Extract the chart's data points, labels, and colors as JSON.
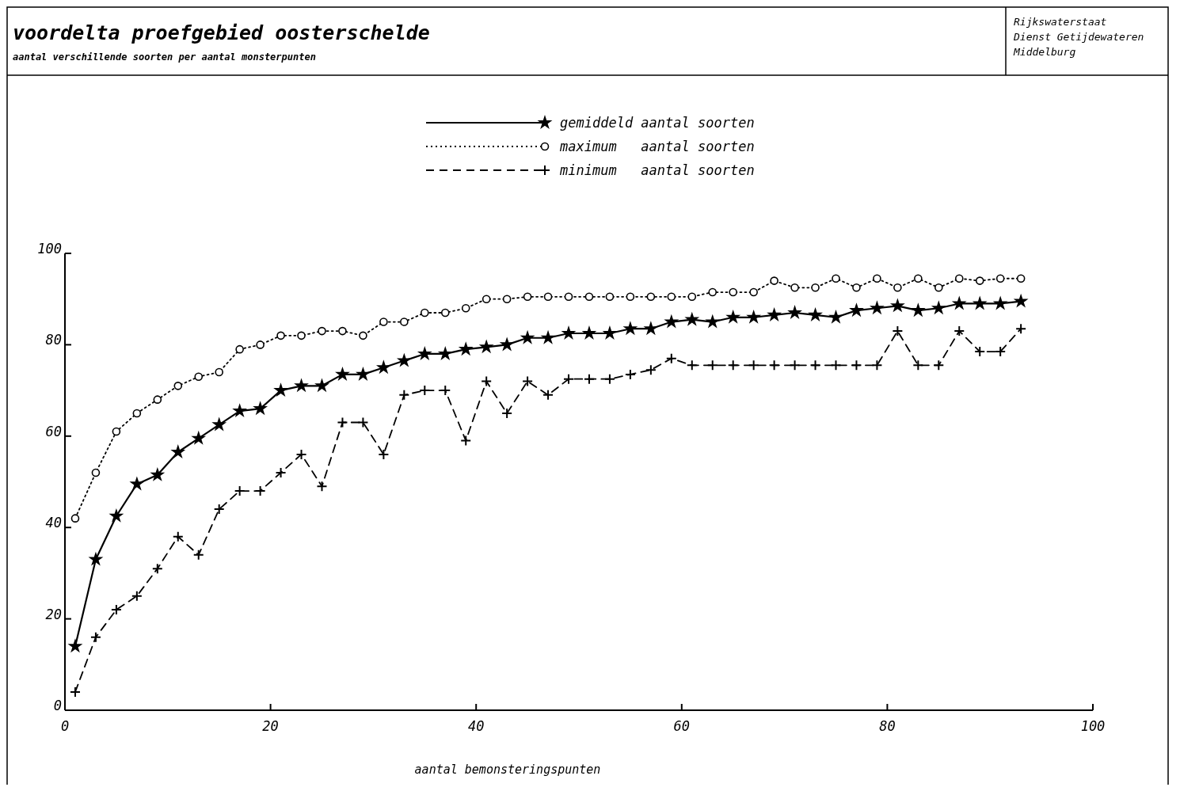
{
  "chart_data": {
    "type": "line",
    "title": "voordelta proefgebied oosterschelde",
    "subtitle": "aantal verschillende soorten per aantal monsterpunten",
    "xlabel": "aantal bemonsteringspunten",
    "annotations": [
      "Rijkswaterstaat",
      "Dienst Getijdewateren",
      "Middelburg"
    ],
    "x": [
      1,
      3,
      5,
      7,
      9,
      11,
      13,
      15,
      17,
      19,
      21,
      23,
      25,
      27,
      29,
      31,
      33,
      35,
      37,
      39,
      41,
      43,
      45,
      47,
      49,
      51,
      53,
      55,
      57,
      59,
      61,
      63,
      65,
      67,
      69,
      71,
      73,
      75,
      77,
      79,
      81,
      83,
      85,
      87,
      89,
      91,
      93
    ],
    "series": [
      {
        "name": "gemiddeld aantal soorten",
        "color": "#000000",
        "marker": "star",
        "line_style": "solid",
        "values": [
          14,
          33,
          42.5,
          49.5,
          51.5,
          56.5,
          59.5,
          62.5,
          65.5,
          66,
          70,
          71,
          71,
          73.5,
          73.5,
          75,
          76.5,
          78,
          78,
          79,
          79.5,
          80,
          81.5,
          81.5,
          82.5,
          82.5,
          82.5,
          83.5,
          83.5,
          85,
          85.5,
          85,
          86,
          86,
          86.5,
          87,
          86.5,
          86,
          87.5,
          88,
          88.5,
          87.5,
          88,
          89,
          89,
          89,
          89.5
        ]
      },
      {
        "name": "maximum   aantal soorten",
        "color": "#000000",
        "marker": "circle",
        "line_style": "dotted",
        "values": [
          42,
          52,
          61,
          65,
          68,
          71,
          73,
          74,
          79,
          80,
          82,
          82,
          83,
          83,
          82,
          85,
          85,
          87,
          87,
          88,
          90,
          90,
          90.5,
          90.5,
          90.5,
          90.5,
          90.5,
          90.5,
          90.5,
          90.5,
          90.5,
          91.5,
          91.5,
          91.5,
          94,
          92.5,
          92.5,
          94.5,
          92.5,
          94.5,
          92.5,
          94.5,
          92.5,
          94.5,
          94,
          94.5,
          94.5
        ]
      },
      {
        "name": "minimum   aantal soorten",
        "color": "#000000",
        "marker": "cross",
        "line_style": "dashed",
        "values": [
          4,
          16,
          22,
          25,
          31,
          38,
          34,
          44,
          48,
          48,
          52,
          56,
          49,
          63,
          63,
          56,
          69,
          70,
          70,
          59,
          72,
          65,
          72,
          69,
          72.5,
          72.5,
          72.5,
          73.5,
          74.5,
          77,
          75.5,
          75.5,
          75.5,
          75.5,
          75.5,
          75.5,
          75.5,
          75.5,
          75.5,
          75.5,
          83,
          75.5,
          75.5,
          83,
          78.5,
          78.5,
          83.5
        ]
      }
    ],
    "xlim": [
      0,
      100
    ],
    "xticks": [
      0,
      20,
      40,
      60,
      80,
      100
    ],
    "ylim": [
      0,
      100
    ],
    "yticks": [
      0,
      20,
      40,
      60,
      80,
      100
    ],
    "legend": "top",
    "grid": false
  }
}
